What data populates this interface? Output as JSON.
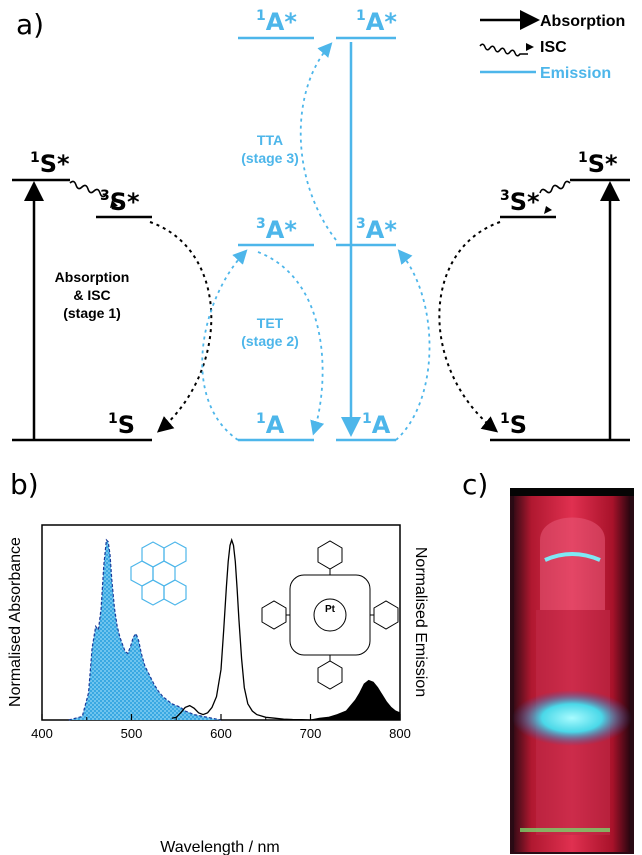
{
  "panels": {
    "a": "a)",
    "b": "b)",
    "c": "c)"
  },
  "colors": {
    "black": "#000000",
    "blue": "#4db6ea",
    "fill": "#4db6ea"
  },
  "legend": {
    "absorption": "Absorption",
    "isc": "ISC",
    "emission": "Emission"
  },
  "diagram": {
    "levels": {
      "s1_star": {
        "sup": "1",
        "base": "S*"
      },
      "s3_star": {
        "sup": "3",
        "base": "S*"
      },
      "s_ground": {
        "sup": "1",
        "base": "S"
      },
      "a1_star": {
        "sup": "1",
        "base": "A*"
      },
      "a3_star": {
        "sup": "3",
        "base": "A*"
      },
      "a_ground": {
        "sup": "1",
        "base": "A"
      }
    },
    "stage1": [
      "Absorption",
      "& ISC",
      "(stage 1)"
    ],
    "stage2": [
      "TET",
      "(stage 2)"
    ],
    "stage3": [
      "TTA",
      "(stage 3)"
    ]
  },
  "chart_data": {
    "type": "line",
    "xlabel": "Wavelength / nm",
    "ylabel_left": "Normalised Absorbance",
    "ylabel_right": "Normalised Emission",
    "xlim": [
      400,
      800
    ],
    "ylim": [
      0,
      1
    ],
    "x_ticks": [
      400,
      500,
      600,
      700,
      800
    ],
    "series": [
      {
        "style": "blue-filled-dashed",
        "x": [
          430,
          445,
          452,
          456,
          460,
          463,
          466,
          469,
          472,
          474,
          476,
          478,
          481,
          484,
          487,
          490,
          493,
          496,
          499,
          502,
          505,
          508,
          511,
          515,
          520,
          525,
          530,
          535,
          540,
          545,
          550,
          555,
          560,
          565,
          570,
          580,
          590,
          600
        ],
        "y": [
          0.0,
          0.02,
          0.15,
          0.4,
          0.52,
          0.5,
          0.62,
          0.86,
          1.0,
          0.99,
          0.92,
          0.78,
          0.62,
          0.52,
          0.46,
          0.42,
          0.38,
          0.37,
          0.41,
          0.46,
          0.48,
          0.44,
          0.37,
          0.3,
          0.25,
          0.2,
          0.16,
          0.13,
          0.11,
          0.09,
          0.08,
          0.07,
          0.05,
          0.04,
          0.03,
          0.02,
          0.01,
          0.0
        ]
      },
      {
        "style": "black-line",
        "x": [
          545,
          550,
          555,
          560,
          565,
          570,
          575,
          580,
          585,
          590,
          595,
          600,
          603,
          606,
          608,
          610,
          612,
          614,
          616,
          618,
          620,
          623,
          626,
          630,
          635,
          640,
          650,
          660,
          670,
          680,
          690,
          700
        ],
        "y": [
          0.01,
          0.015,
          0.04,
          0.07,
          0.08,
          0.065,
          0.04,
          0.03,
          0.04,
          0.07,
          0.13,
          0.28,
          0.5,
          0.74,
          0.88,
          0.97,
          1.0,
          0.97,
          0.88,
          0.73,
          0.56,
          0.34,
          0.18,
          0.09,
          0.05,
          0.03,
          0.015,
          0.01,
          0.005,
          0.003,
          0.002,
          0.0
        ]
      },
      {
        "style": "black-filled",
        "x": [
          700,
          710,
          720,
          730,
          740,
          745,
          750,
          755,
          760,
          765,
          770,
          775,
          780,
          785,
          790,
          795,
          800
        ],
        "y": [
          0.0,
          0.01,
          0.015,
          0.03,
          0.05,
          0.08,
          0.11,
          0.15,
          0.2,
          0.22,
          0.21,
          0.18,
          0.14,
          0.1,
          0.07,
          0.05,
          0.04
        ]
      }
    ]
  }
}
